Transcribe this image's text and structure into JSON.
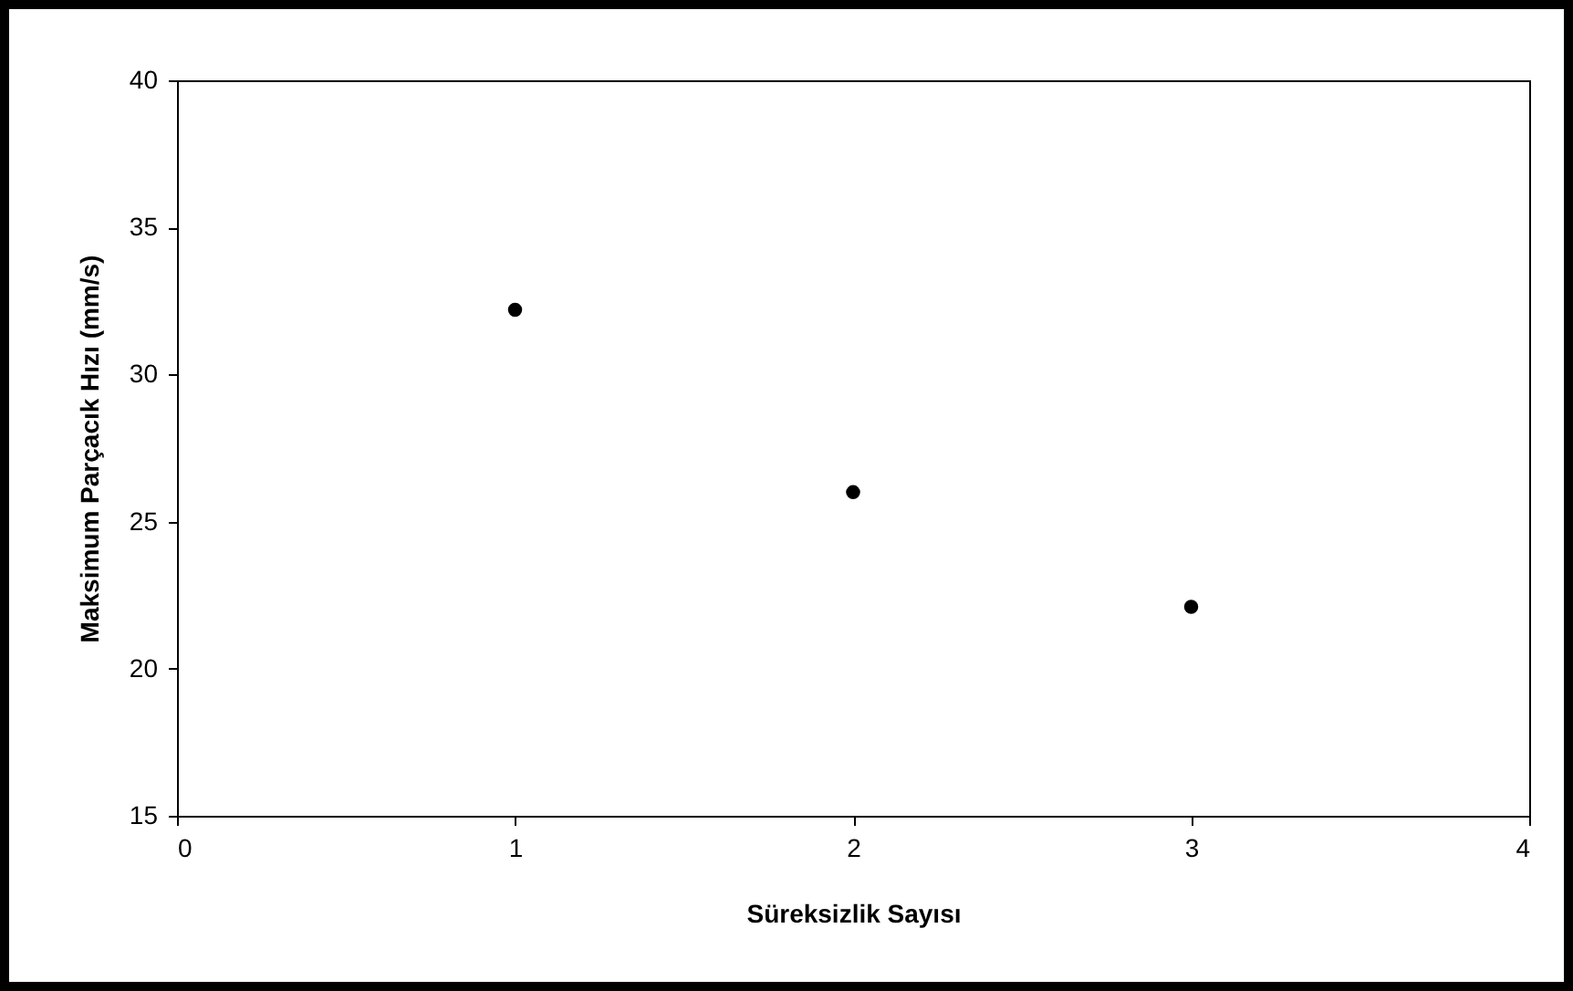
{
  "chart_data": {
    "type": "scatter",
    "xlabel": "Süreksizlik Sayısı",
    "ylabel": "Maksimum Parçacık Hızı (mm/s)",
    "x": [
      1,
      2,
      3
    ],
    "series": [
      {
        "color": "#000000",
        "values": [
          32.2,
          26.0,
          22.1
        ]
      }
    ],
    "xlim": [
      0,
      4
    ],
    "xticks": [
      0,
      1,
      2,
      3,
      4
    ],
    "ylim": [
      15,
      40
    ],
    "yticks": [
      15,
      20,
      25,
      30,
      35,
      40
    ],
    "grid": false,
    "marker": "circle"
  }
}
